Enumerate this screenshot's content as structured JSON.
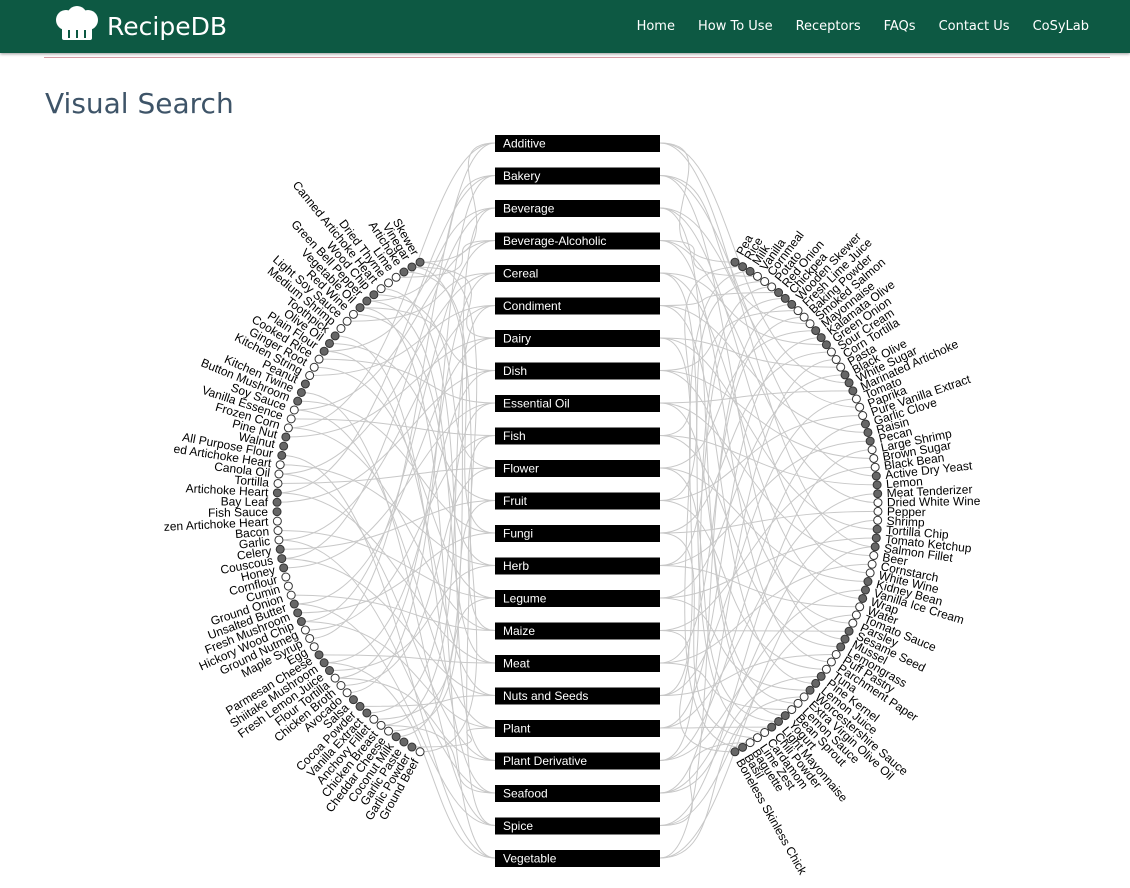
{
  "header": {
    "brand": "RecipeDB",
    "nav": [
      "Home",
      "How To Use",
      "Receptors",
      "FAQs",
      "Contact Us",
      "CoSyLab"
    ]
  },
  "page_title": "Visual Search",
  "categories": [
    "Additive",
    "Bakery",
    "Beverage",
    "Beverage-Alcoholic",
    "Cereal",
    "Condiment",
    "Dairy",
    "Dish",
    "Essential Oil",
    "Fish",
    "Flower",
    "Fruit",
    "Fungi",
    "Herb",
    "Legume",
    "Maize",
    "Meat",
    "Nuts and Seeds",
    "Plant",
    "Plant Derivative",
    "Seafood",
    "Spice",
    "Vegetable"
  ],
  "left_ingredients": [
    "Skewer",
    "Vinegar",
    "Artichoke",
    "Lime",
    "Dried Thyme",
    "Canned Artichoke Heart",
    "Wood Chip",
    "Green Bell Pepper",
    "Vegetable Oil",
    "Red Wine",
    "Light Soy Sauce",
    "Medium Shrimp",
    "Toothpick",
    "Olive Oil",
    "Plain Flour",
    "Cooked Rice",
    "Ginger Root",
    "Kitchen String",
    "Peanut",
    "Kitchen Twine",
    "Button Mushroom",
    "Soy Sauce",
    "Vanilla Essence",
    "Frozen Corn",
    "Pine Nut",
    "Walnut",
    "All Purpose Flour",
    "ed Artichoke Heart",
    "Canola Oil",
    "Tortilla",
    "Artichoke Heart",
    "Bay Leaf",
    "Fish Sauce",
    "zen Artichoke Heart",
    "Bacon",
    "Garlic",
    "Celery",
    "Couscous",
    "Honey",
    "Cornflour",
    "Cumin",
    "Ground Onion",
    "Unsalted Butter",
    "Fresh Mushroom",
    "Hickory Wood Chip",
    "Ground Nutmeg",
    "Maple Syrup",
    "Egg",
    "Parmesan Cheese",
    "Shiitake Mushroom",
    "Fresh Lemon Juice",
    "Flour Tortilla",
    "Chicken Broth",
    "Avocado",
    "Salsa",
    "Cocoa Powder",
    "Vanilla Extract",
    "Anchovy Fillet",
    "Chicken Breast",
    "Cheddar Cheese",
    "Coconut Milk",
    "Garlic Paste",
    "Garlic Powder",
    "Ground Beef"
  ],
  "right_ingredients": [
    "Pea",
    "Rice",
    "Milk",
    "Vanilla",
    "Cornmeal",
    "Potato",
    "Red Onion",
    "Chickpea",
    "Wooden Skewer",
    "Fresh Lime Juice",
    "Baking Powder",
    "Smoked Salmon",
    "Mayonnaise",
    "Kalamata Olive",
    "Green Onion",
    "Sour Cream",
    "Corn Tortilla",
    "Pasta",
    "Black Olive",
    "White Sugar",
    "Marinated Artichoke",
    "Tomato",
    "Paprika",
    "Pure Vanilla Extract",
    "Garlic Clove",
    "Raisin",
    "Pecan",
    "Large Shrimp",
    "Brown Sugar",
    "Black Bean",
    "Active Dry Yeast",
    "Lemon",
    "Meat Tenderizer",
    "Dried White Wine",
    "Pepper",
    "Shrimp",
    "Tortilla Chip",
    "Tomato Ketchup",
    "Salmon Fillet",
    "Beer",
    "Cornstarch",
    "White Wine",
    "Kidney Bean",
    "Vanilla Ice Cream",
    "Wrap",
    "Water",
    "Tomato Sauce",
    "Parsley",
    "Sesame Seed",
    "Mussel",
    "Lemongrass",
    "Puff Pastry",
    "Parchment Paper",
    "Tuna",
    "Pine Kernel",
    "Lemon Juice",
    "Worcestershire Sauce",
    "Extra Virgin Olive Oil",
    "Lemon Sauce",
    "Bean Sprout",
    "Yogurt",
    "Light Mayonnaise",
    "Chili Powder",
    "Cardamom",
    "Lime Zest",
    "Baguette",
    "Basil",
    "Boneless Skinless Chick"
  ]
}
